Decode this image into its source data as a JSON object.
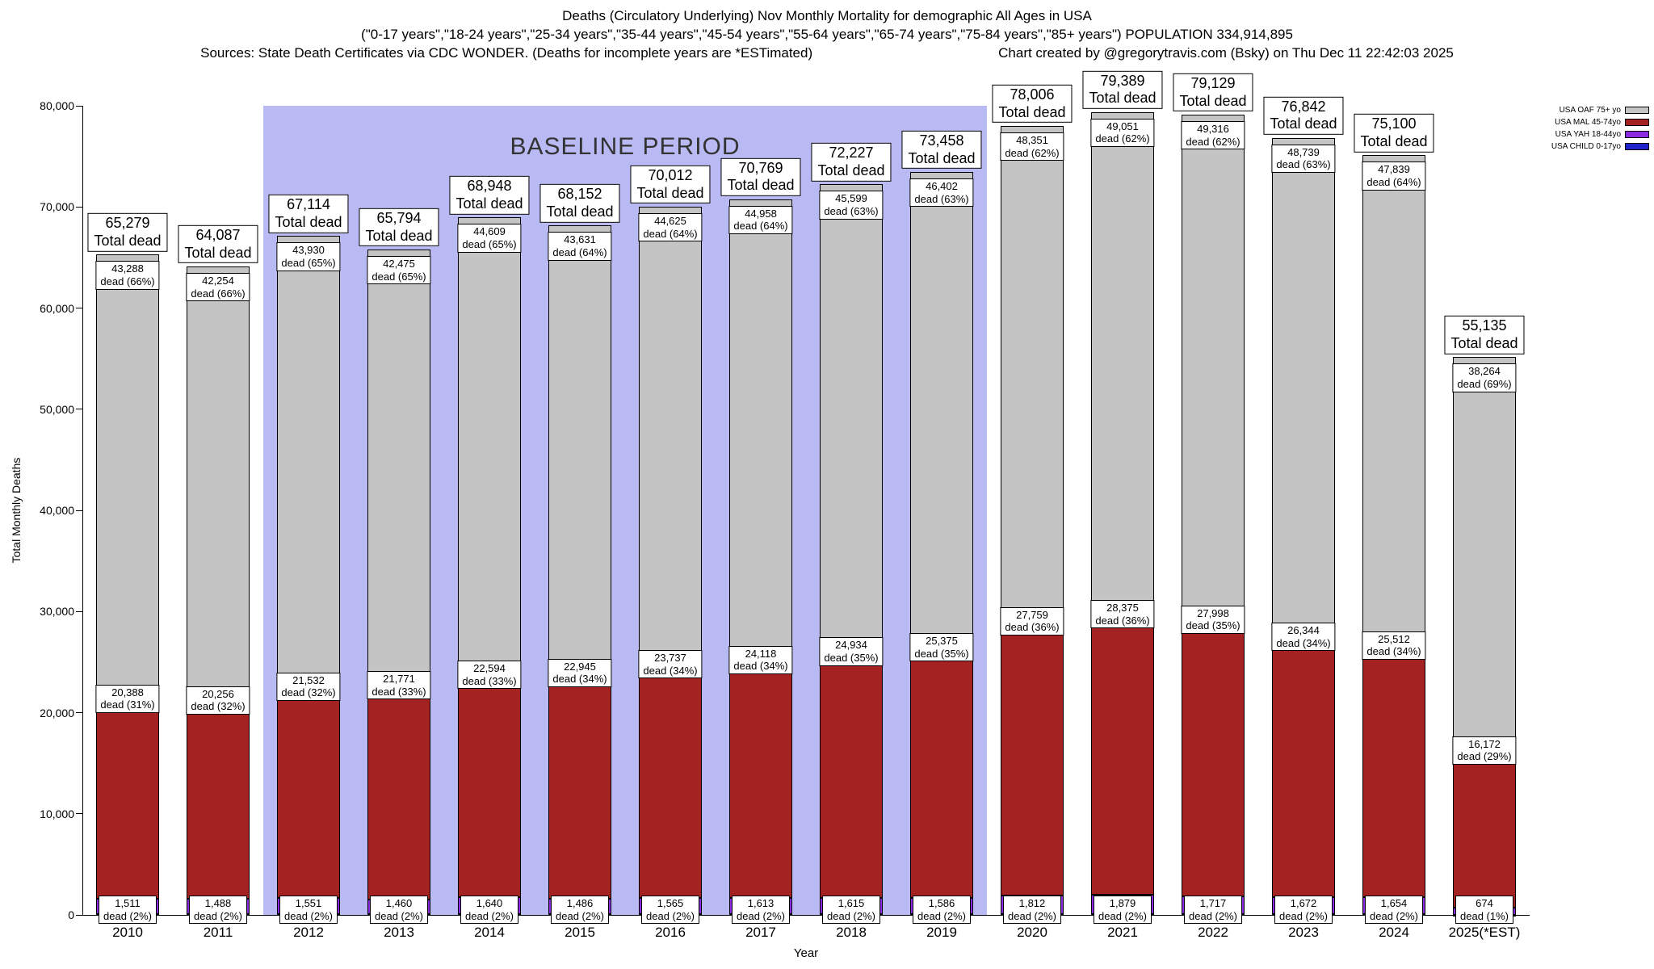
{
  "header": {
    "title_line1": "Deaths (Circulatory Underlying) Nov Monthly Mortality for demographic All Ages in USA",
    "title_line2": "(\"0-17 years\",\"18-24 years\",\"25-34 years\",\"35-44 years\",\"45-54 years\",\"55-64 years\",\"65-74 years\",\"75-84 years\",\"85+ years\") POPULATION 334,914,895",
    "title_line3_left": "Sources: State Death Certificates via CDC WONDER. (Deaths for incomplete years are *ESTimated)",
    "title_line3_right": "Chart created by @gregorytravis.com (Bsky) on Thu Dec 11 22:42:03 2025"
  },
  "chart_data": {
    "type": "bar",
    "stacked": true,
    "title": "Deaths (Circulatory Underlying) Nov Monthly Mortality for demographic All Ages in USA",
    "xlabel": "Year",
    "ylabel": "Total Monthly Deaths",
    "ylim": [
      0,
      80000
    ],
    "ytick_interval": 10000,
    "grid": false,
    "legend_position": "top-right",
    "categories": [
      "2010",
      "2011",
      "2012",
      "2013",
      "2014",
      "2015",
      "2016",
      "2017",
      "2018",
      "2019",
      "2020",
      "2021",
      "2022",
      "2023",
      "2024",
      "2025(*EST)"
    ],
    "baseline": {
      "label": "BASELINE PERIOD",
      "start_category": "2012",
      "end_category": "2019",
      "color": "#b9b9f3"
    },
    "totals": [
      65279,
      64087,
      67114,
      65794,
      68948,
      68152,
      70012,
      70769,
      72227,
      73458,
      78006,
      79389,
      79129,
      76842,
      75100,
      55135
    ],
    "series": [
      {
        "name": "USA OAF 75+ yo",
        "color": "#c4c4c4",
        "values": [
          43288,
          42254,
          43930,
          42475,
          44609,
          43631,
          44625,
          44958,
          45599,
          46402,
          48351,
          49051,
          49316,
          48739,
          47839,
          38264
        ],
        "pcts": [
          66,
          66,
          65,
          65,
          65,
          64,
          64,
          64,
          63,
          63,
          62,
          62,
          62,
          63,
          64,
          69
        ]
      },
      {
        "name": "USA MAL 45-74yo",
        "color": "#a42222",
        "values": [
          20388,
          20256,
          21532,
          21771,
          22594,
          22945,
          23737,
          24118,
          24934,
          25375,
          27759,
          28375,
          27998,
          26344,
          25512,
          16172
        ],
        "pcts": [
          31,
          32,
          32,
          33,
          33,
          34,
          34,
          34,
          35,
          35,
          36,
          36,
          35,
          34,
          34,
          29
        ]
      },
      {
        "name": "USA YAH 18-44yo",
        "color": "#8a2be2",
        "values": [
          1511,
          1488,
          1551,
          1460,
          1640,
          1486,
          1565,
          1613,
          1615,
          1586,
          1812,
          1879,
          1717,
          1672,
          1654,
          674
        ],
        "pcts": [
          2,
          2,
          2,
          2,
          2,
          2,
          2,
          2,
          2,
          2,
          2,
          2,
          2,
          2,
          2,
          1
        ]
      },
      {
        "name": "USA CHILD 0-17yo",
        "color": "#2222cc",
        "values": null,
        "pcts": null
      }
    ],
    "labels": {
      "total_suffix": "Total dead",
      "segment_word": "dead"
    }
  }
}
